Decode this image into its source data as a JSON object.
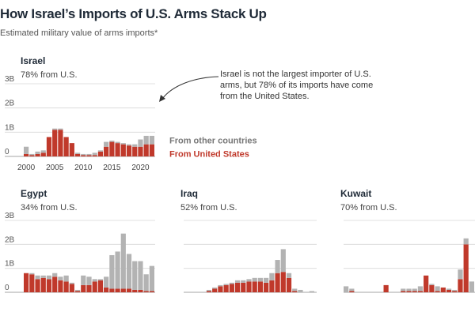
{
  "title": "How Israel’s Imports of U.S. Arms Stack Up",
  "subtitle": "Estimated military value of arms imports*",
  "colors": {
    "us": "#c0392b",
    "other": "#b3b3b3",
    "grid": "#d9d9d9",
    "axis": "#888888",
    "text": "#333333"
  },
  "legend": {
    "other": "From other countries",
    "us": "From United States"
  },
  "annotation": "Israel is not the largest importer of U.S. arms, but 78% of its imports have come from the United States.",
  "panels": {
    "israel": {
      "name": "Israel",
      "share": "78% from U.S."
    },
    "egypt": {
      "name": "Egypt",
      "share": "34% from U.S."
    },
    "iraq": {
      "name": "Iraq",
      "share": "52% from U.S."
    },
    "kuwait": {
      "name": "Kuwait",
      "share": "70% from U.S."
    }
  },
  "chart_data": [
    {
      "type": "bar",
      "stacked": true,
      "title": "Israel",
      "subtitle": "78% from U.S.",
      "ylim": [
        0,
        3
      ],
      "yticks": [
        0,
        1,
        2,
        3
      ],
      "ytick_labels": [
        "0",
        "1B",
        "2B",
        "3B"
      ],
      "xticks": [
        2000,
        2005,
        2010,
        2015,
        2020
      ],
      "x": [
        2000,
        2001,
        2002,
        2003,
        2004,
        2005,
        2006,
        2007,
        2008,
        2009,
        2010,
        2011,
        2012,
        2013,
        2014,
        2015,
        2016,
        2017,
        2018,
        2019,
        2020,
        2021,
        2022
      ],
      "series": [
        {
          "name": "From United States",
          "values": [
            0.1,
            0.05,
            0.1,
            0.15,
            0.8,
            1.1,
            1.1,
            0.8,
            0.55,
            0.1,
            0.05,
            0.05,
            0.05,
            0.2,
            0.4,
            0.6,
            0.55,
            0.5,
            0.45,
            0.4,
            0.4,
            0.5,
            0.5
          ]
        },
        {
          "name": "From other countries",
          "values": [
            0.3,
            0.05,
            0.1,
            0.1,
            0.0,
            0.05,
            0.05,
            0.0,
            0.0,
            0.05,
            0.05,
            0.05,
            0.1,
            0.05,
            0.2,
            0.05,
            0.05,
            0.05,
            0.05,
            0.1,
            0.3,
            0.35,
            0.35
          ]
        }
      ]
    },
    {
      "type": "bar",
      "stacked": true,
      "title": "Egypt",
      "subtitle": "34% from U.S.",
      "ylim": [
        0,
        3
      ],
      "yticks": [
        0,
        1,
        2,
        3
      ],
      "ytick_labels": [
        "0",
        "1B",
        "2B",
        "3B"
      ],
      "x": [
        2000,
        2001,
        2002,
        2003,
        2004,
        2005,
        2006,
        2007,
        2008,
        2009,
        2010,
        2011,
        2012,
        2013,
        2014,
        2015,
        2016,
        2017,
        2018,
        2019,
        2020,
        2021,
        2022
      ],
      "series": [
        {
          "name": "From United States",
          "values": [
            0.8,
            0.75,
            0.55,
            0.6,
            0.55,
            0.65,
            0.5,
            0.45,
            0.35,
            0.05,
            0.3,
            0.3,
            0.45,
            0.5,
            0.2,
            0.15,
            0.15,
            0.15,
            0.15,
            0.1,
            0.1,
            0.05,
            0.05
          ]
        },
        {
          "name": "From other countries",
          "values": [
            0.0,
            0.05,
            0.15,
            0.1,
            0.15,
            0.15,
            0.15,
            0.25,
            0.05,
            0.05,
            0.4,
            0.35,
            0.1,
            0.05,
            0.45,
            1.4,
            1.55,
            2.3,
            1.45,
            1.2,
            1.2,
            0.7,
            1.05
          ]
        }
      ]
    },
    {
      "type": "bar",
      "stacked": true,
      "title": "Iraq",
      "subtitle": "52% from U.S.",
      "ylim": [
        0,
        3
      ],
      "yticks": [
        0,
        1,
        2,
        3
      ],
      "x": [
        2000,
        2001,
        2002,
        2003,
        2004,
        2005,
        2006,
        2007,
        2008,
        2009,
        2010,
        2011,
        2012,
        2013,
        2014,
        2015,
        2016,
        2017,
        2018,
        2019,
        2020,
        2021,
        2022
      ],
      "series": [
        {
          "name": "From United States",
          "values": [
            0,
            0,
            0,
            0,
            0.05,
            0.15,
            0.25,
            0.3,
            0.35,
            0.4,
            0.4,
            0.45,
            0.45,
            0.45,
            0.4,
            0.5,
            0.8,
            0.85,
            0.6,
            0.05,
            0.0,
            0.0,
            0.0
          ]
        },
        {
          "name": "From other countries",
          "values": [
            0,
            0,
            0,
            0,
            0.05,
            0.05,
            0.05,
            0.05,
            0.05,
            0.1,
            0.1,
            0.1,
            0.15,
            0.15,
            0.2,
            0.3,
            0.55,
            0.95,
            0.2,
            0.1,
            0.1,
            0.0,
            0.05
          ]
        }
      ]
    },
    {
      "type": "bar",
      "stacked": true,
      "title": "Kuwait",
      "subtitle": "70% from U.S.",
      "ylim": [
        0,
        3
      ],
      "yticks": [
        0,
        1,
        2,
        3
      ],
      "x": [
        2000,
        2001,
        2002,
        2003,
        2004,
        2005,
        2006,
        2007,
        2008,
        2009,
        2010,
        2011,
        2012,
        2013,
        2014,
        2015,
        2016,
        2017,
        2018,
        2019,
        2020,
        2021,
        2022
      ],
      "series": [
        {
          "name": "From United States",
          "values": [
            0.0,
            0.05,
            0.0,
            0.0,
            0.0,
            0.0,
            0.0,
            0.3,
            0.0,
            0.0,
            0.05,
            0.05,
            0.05,
            0.05,
            0.7,
            0.3,
            0.05,
            0.2,
            0.1,
            0.05,
            0.55,
            2.0,
            0.0
          ]
        },
        {
          "name": "From other countries",
          "values": [
            0.25,
            0.1,
            0.0,
            0.0,
            0.0,
            0.0,
            0.0,
            0.0,
            0.0,
            0.0,
            0.1,
            0.1,
            0.1,
            0.2,
            0.0,
            0.05,
            0.2,
            0.0,
            0.05,
            0.05,
            0.4,
            0.25,
            0.45
          ]
        }
      ]
    }
  ]
}
